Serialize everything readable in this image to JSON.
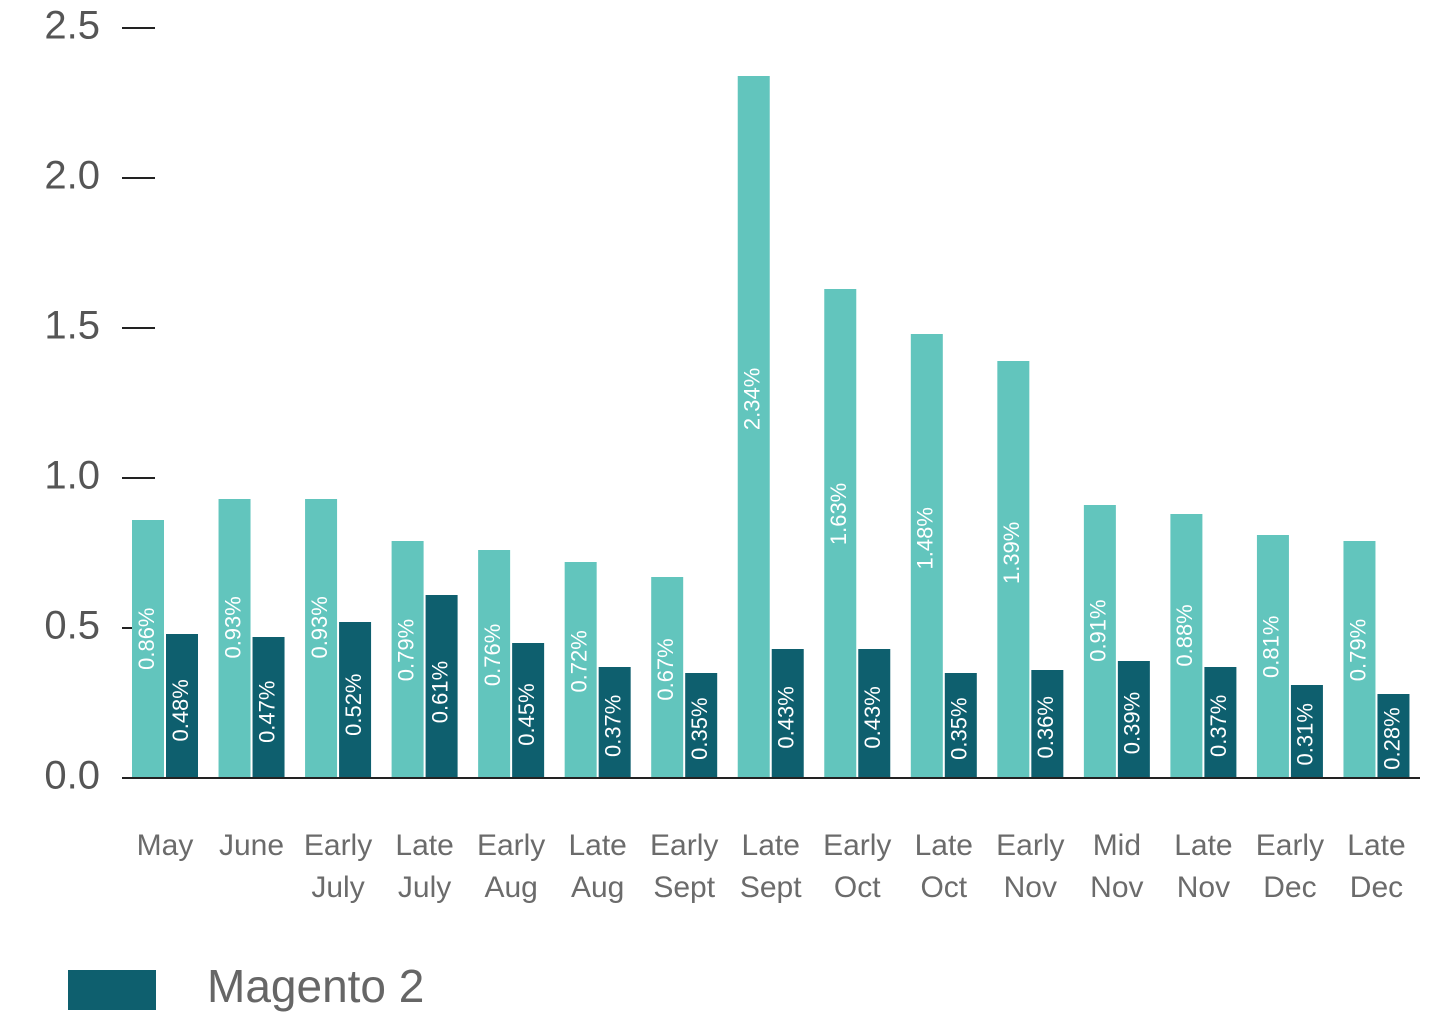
{
  "chart_data": {
    "type": "bar",
    "categories": [
      [
        "May"
      ],
      [
        "June"
      ],
      [
        "Early",
        "July"
      ],
      [
        "Late",
        "July"
      ],
      [
        "Early",
        "Aug"
      ],
      [
        "Late",
        "Aug"
      ],
      [
        "Early",
        "Sept"
      ],
      [
        "Late",
        "Sept"
      ],
      [
        "Early",
        "Oct"
      ],
      [
        "Late",
        "Oct"
      ],
      [
        "Early",
        "Nov"
      ],
      [
        "Mid",
        "Nov"
      ],
      [
        "Late",
        "Nov"
      ],
      [
        "Early",
        "Dec"
      ],
      [
        "Late",
        "Dec"
      ]
    ],
    "series": [
      {
        "color": "#62c5bd",
        "values": [
          0.86,
          0.93,
          0.93,
          0.79,
          0.76,
          0.72,
          0.67,
          2.34,
          1.63,
          1.48,
          1.39,
          0.91,
          0.88,
          0.81,
          0.79
        ],
        "value_labels": [
          "0.86%",
          "0.93%",
          "0.93%",
          "0.79%",
          "0.76%",
          "0.72%",
          "0.67%",
          "2.34%",
          "1.63%",
          "1.48%",
          "1.39%",
          "0.91%",
          "0.88%",
          "0.81%",
          "0.79%"
        ]
      },
      {
        "name": "Magento 2",
        "color": "#0e5f6e",
        "values": [
          0.48,
          0.47,
          0.52,
          0.61,
          0.45,
          0.37,
          0.35,
          0.43,
          0.43,
          0.35,
          0.36,
          0.39,
          0.37,
          0.31,
          0.28
        ],
        "value_labels": [
          "0.48%",
          "0.47%",
          "0.52%",
          "0.61%",
          "0.45%",
          "0.37%",
          "0.35%",
          "0.43%",
          "0.43%",
          "0.35%",
          "0.36%",
          "0.39%",
          "0.37%",
          "0.31%",
          "0.28%"
        ]
      }
    ],
    "ylim": [
      0,
      2.5
    ],
    "yticks": [
      {
        "value": 0,
        "label": "0.0"
      },
      0.5,
      {
        "value": 1,
        "label": "1.0"
      },
      1.5,
      {
        "value": 2,
        "label": "2.0"
      },
      2.5
    ]
  }
}
